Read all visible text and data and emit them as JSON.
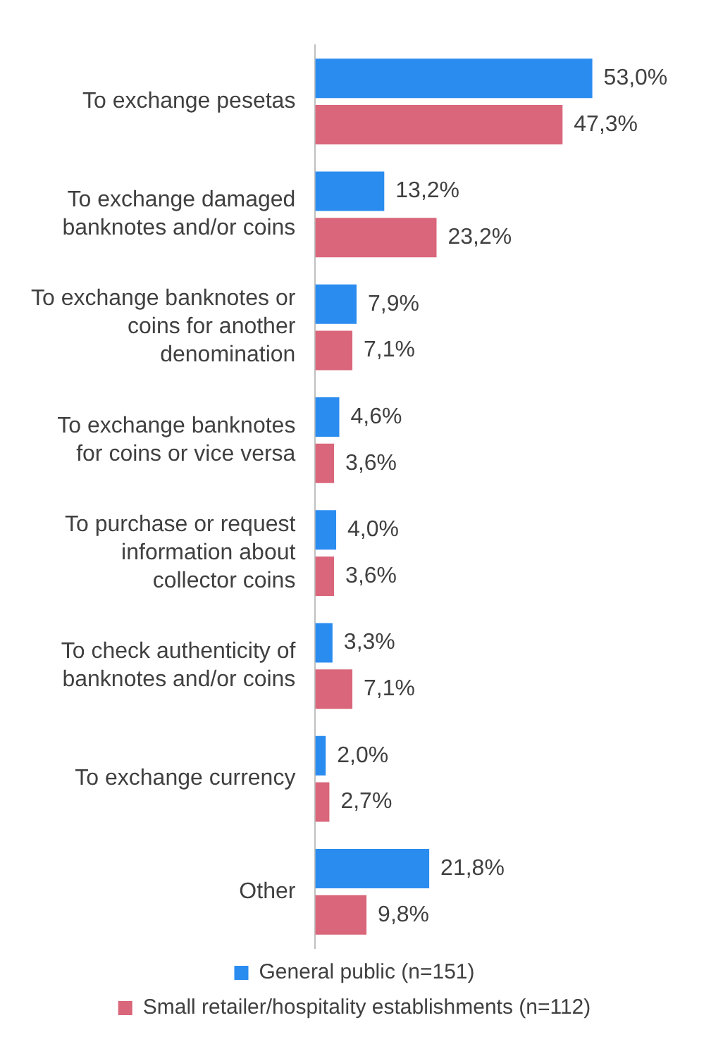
{
  "chart_data": {
    "type": "bar",
    "orientation": "horizontal",
    "legend": "bottom",
    "categories": [
      "To exchange pesetas",
      "To exchange damaged banknotes and/or coins",
      "To exchange banknotes or coins for another denomination",
      "To exchange banknotes for coins or vice versa",
      "To purchase or request information about collector coins",
      "To check authenticity of banknotes and/or coins",
      "To exchange currency",
      "Other"
    ],
    "series": [
      {
        "name": "General public (n=151)",
        "color": "#2b8cf0",
        "values": [
          53.0,
          13.2,
          7.9,
          4.6,
          4.0,
          3.3,
          2.0,
          21.8
        ],
        "value_labels": [
          "53,0%",
          "13,2%",
          "7,9%",
          "4,6%",
          "4,0%",
          "3,3%",
          "2,0%",
          "21,8%"
        ]
      },
      {
        "name": "Small retailer/hospitality establishments (n=112)",
        "color": "#d9667a",
        "values": [
          47.3,
          23.2,
          7.1,
          3.6,
          3.6,
          7.1,
          2.7,
          9.8
        ],
        "value_labels": [
          "47,3%",
          "23,2%",
          "7,1%",
          "3,6%",
          "3,6%",
          "7,1%",
          "2,7%",
          "9,8%"
        ]
      }
    ]
  }
}
